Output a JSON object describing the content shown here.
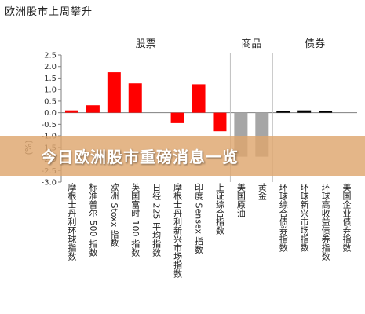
{
  "page": {
    "banner_text": "今日欧洲股市重磅消息一览"
  },
  "chart_data": {
    "type": "bar",
    "title": "欧洲股市上周攀升",
    "ylabel": "(%)",
    "ylim": [
      -3.0,
      2.5
    ],
    "yticks": [
      "2.5",
      "2.0",
      "1.5",
      "1.0",
      "0.5",
      "0.0",
      "-0.5",
      "-1.0",
      "-1.5",
      "-2.0",
      "-2.5",
      "-3.0"
    ],
    "groups": [
      {
        "label": "股票",
        "categories": [
          "摩根士丹利环球指数",
          "标准普尔 500 指数",
          "欧洲 Stoxx 指数",
          "英国富时 100 指数",
          "日经 225 平均指数",
          "摩根士丹利新兴市场指数",
          "印度 Sensex 指数",
          "上证综合指数"
        ]
      },
      {
        "label": "商品",
        "categories": [
          "美国原油",
          "黄金"
        ]
      },
      {
        "label": "债券",
        "categories": [
          "环球综合债券指数",
          "环球新兴市场指数",
          "环球高收益债券指数",
          "美国企业债券指数"
        ]
      }
    ],
    "categories": [
      "摩根士丹利环球指数",
      "标准普尔 500 指数",
      "欧洲 Stoxx 指数",
      "英国富时 100 指数",
      "日经 225 平均指数",
      "摩根士丹利新兴市场指数",
      "印度 Sensex 指数",
      "上证综合指数",
      "美国原油",
      "黄金",
      "环球综合债券指数",
      "环球新兴市场指数",
      "环球高收益债券指数",
      "美国企业债券指数"
    ],
    "values": [
      0.1,
      0.32,
      1.75,
      1.27,
      0.0,
      -0.45,
      1.23,
      -0.8,
      -1.9,
      -1.9,
      0.06,
      0.1,
      0.06,
      0.0
    ],
    "colors": [
      "#ff0000",
      "#ff0000",
      "#ff0000",
      "#ff0000",
      "#ff0000",
      "#ff0000",
      "#ff0000",
      "#ff0000",
      "#a6a6a6",
      "#a6a6a6",
      "#000000",
      "#000000",
      "#000000",
      "#000000"
    ],
    "grid": false,
    "legend": "none"
  }
}
